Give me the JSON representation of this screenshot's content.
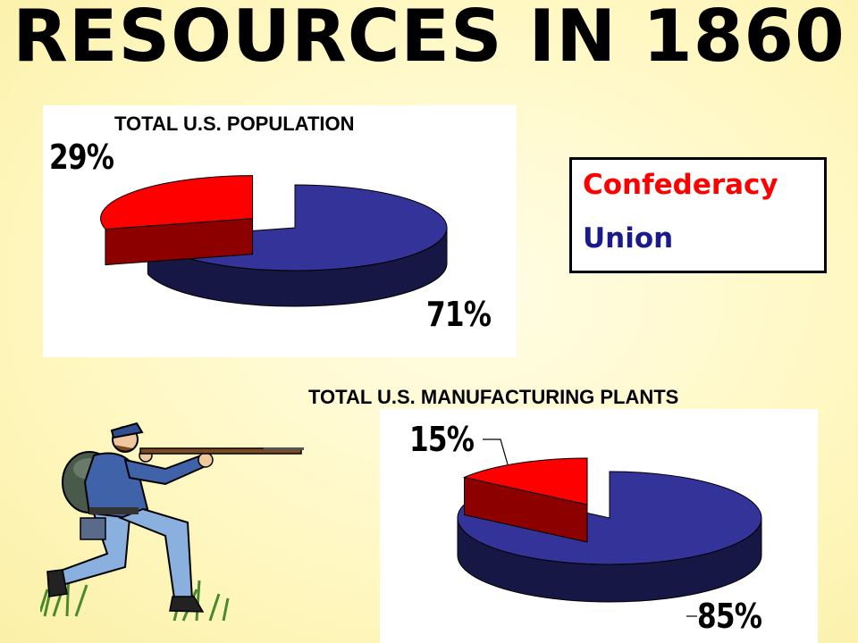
{
  "title": "RESOURCES IN 1860",
  "legend": {
    "items": [
      {
        "label": "Confederacy",
        "color": "#ff0000"
      },
      {
        "label": "Union",
        "color": "#1a1a8c"
      }
    ]
  },
  "chart_data": [
    {
      "type": "pie",
      "title": "TOTAL U.S. POPULATION",
      "slices": [
        {
          "name": "Confederacy",
          "value": 29,
          "label": "29%"
        },
        {
          "name": "Union",
          "value": 71,
          "label": "71%"
        }
      ],
      "colors": {
        "Confederacy": "#ff0000",
        "Union": "#333399"
      },
      "style": "3d-exploded"
    },
    {
      "type": "pie",
      "title": "TOTAL U.S. MANUFACTURING PLANTS",
      "slices": [
        {
          "name": "Confederacy",
          "value": 15,
          "label": "15%"
        },
        {
          "name": "Union",
          "value": 85,
          "label": "85%"
        }
      ],
      "colors": {
        "Confederacy": "#ff0000",
        "Union": "#333399"
      },
      "style": "3d-exploded"
    }
  ]
}
